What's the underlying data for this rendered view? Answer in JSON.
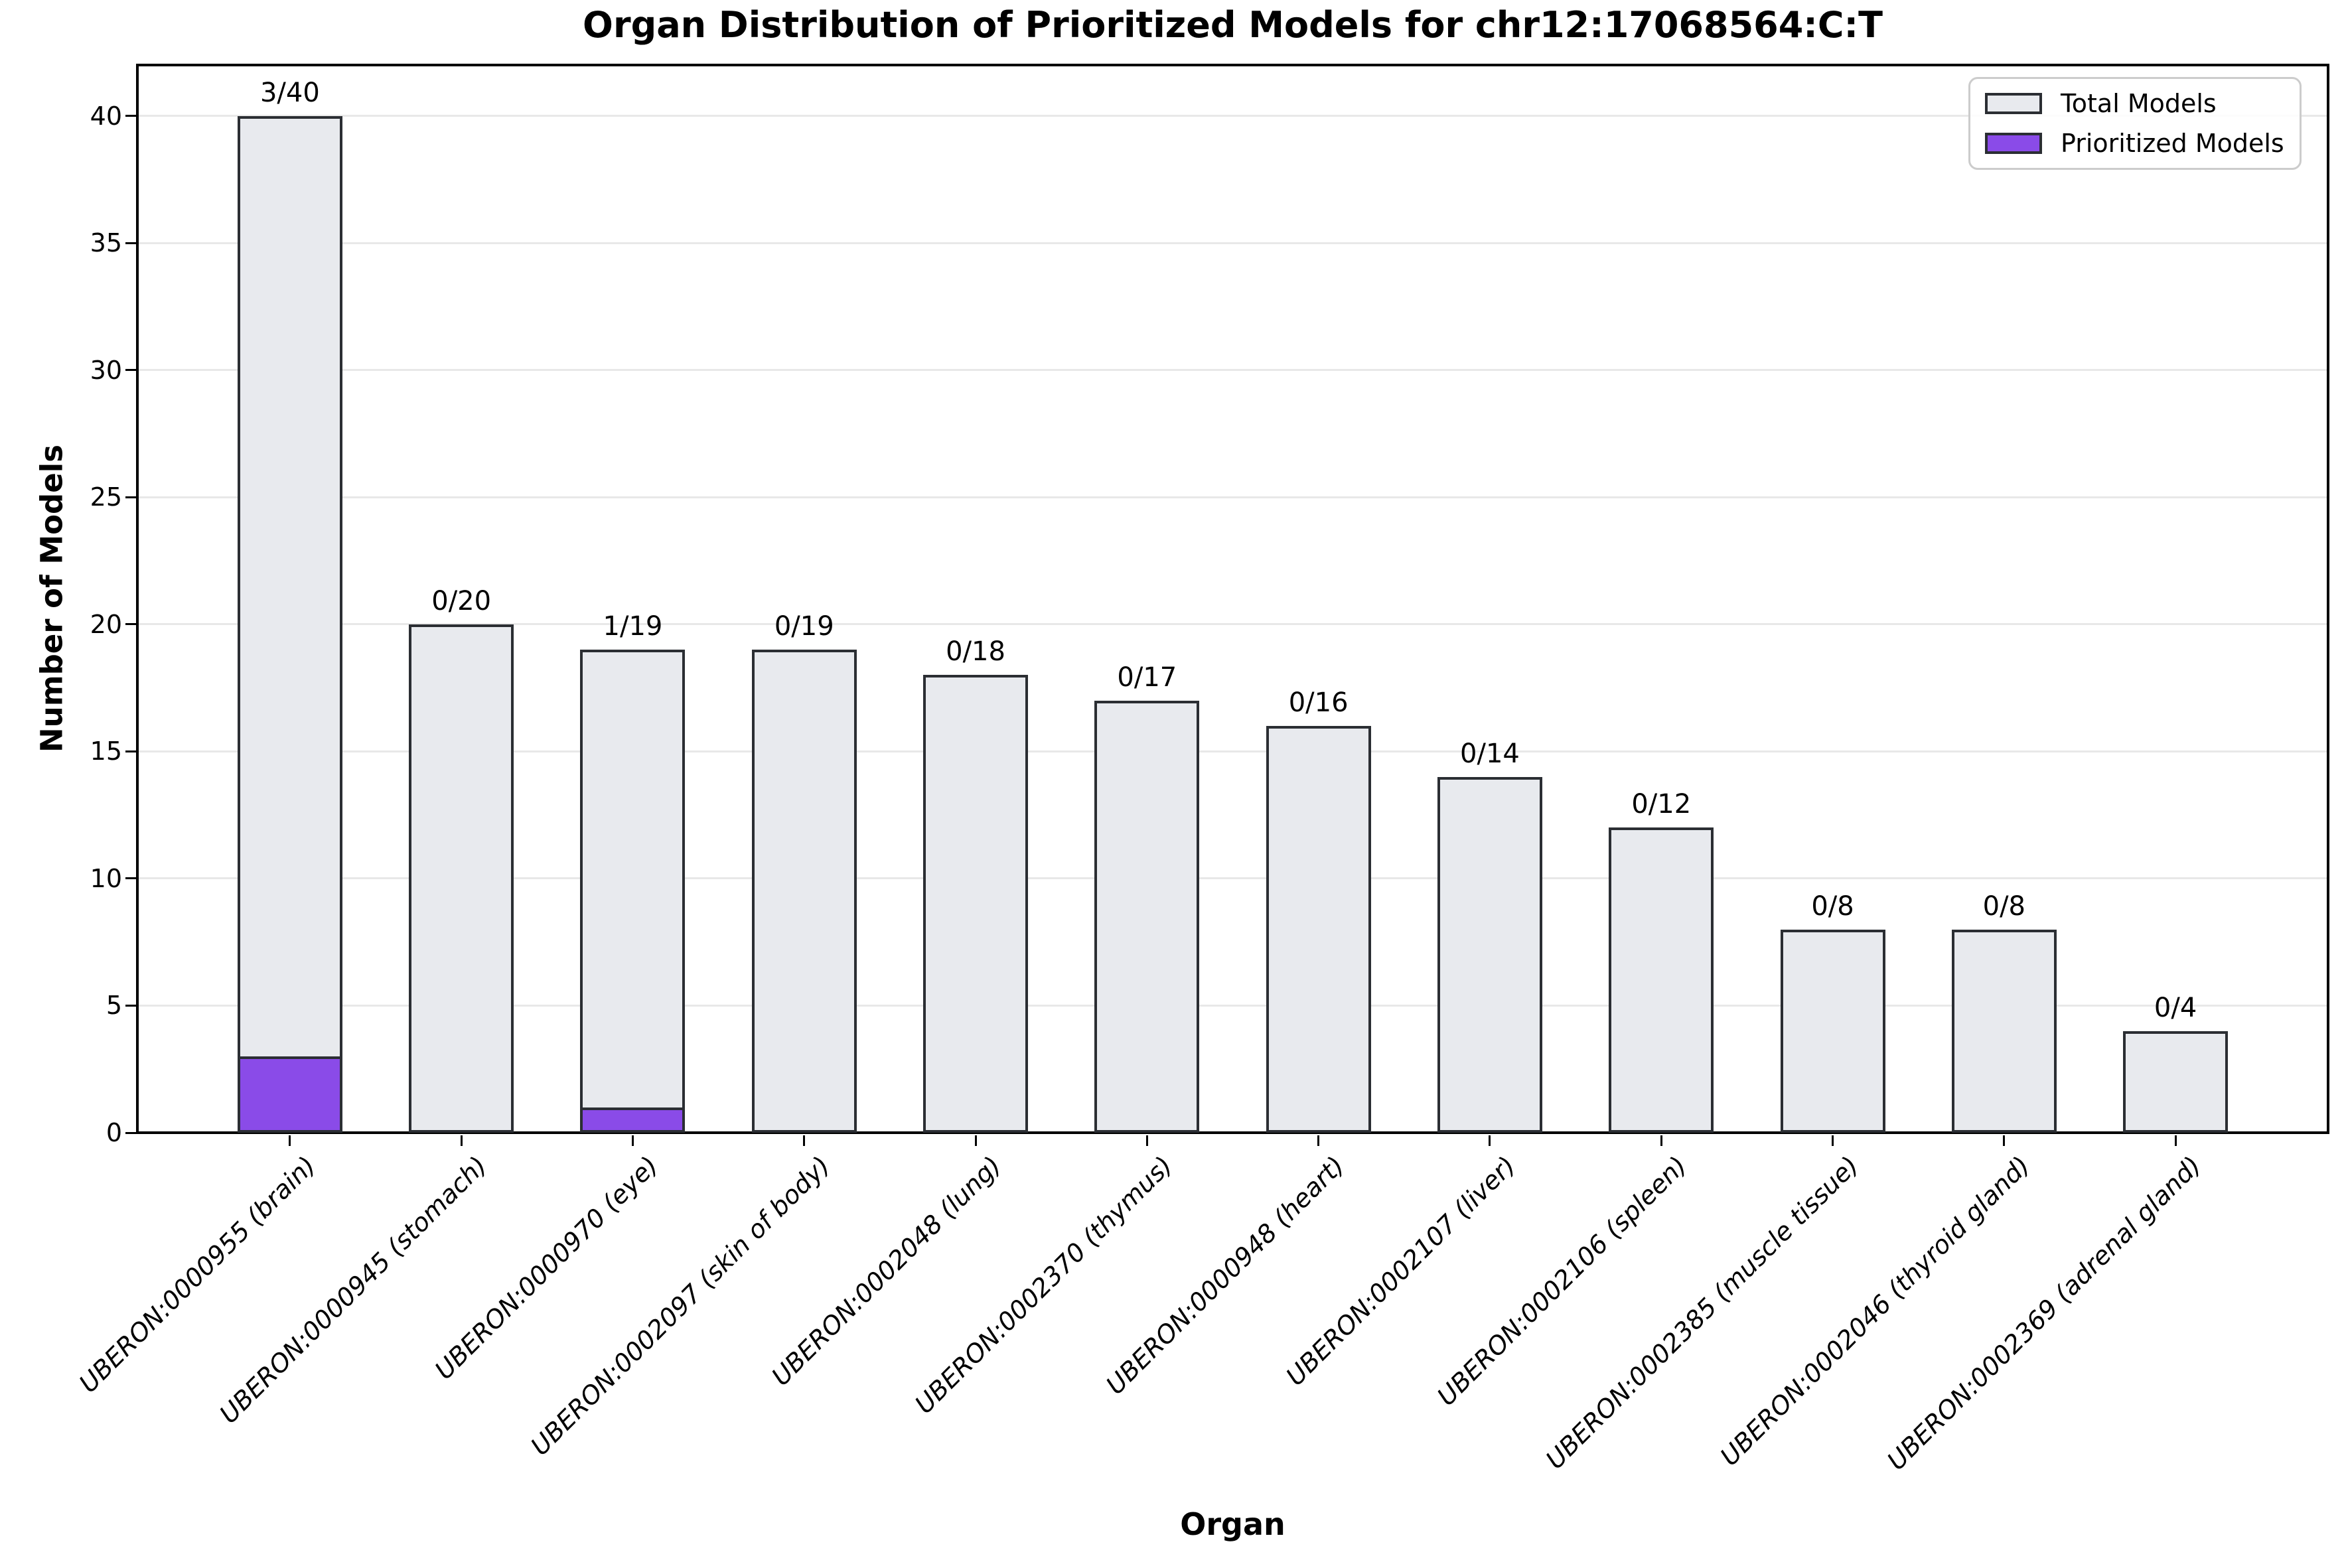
{
  "chart_data": {
    "type": "bar",
    "title": "Organ Distribution of Prioritized Models for chr12:17068564:C:T",
    "xlabel": "Organ",
    "ylabel": "Number of Models",
    "ylim": [
      0,
      42
    ],
    "yticks": [
      0,
      5,
      10,
      15,
      20,
      25,
      30,
      35,
      40
    ],
    "grid": "horizontal",
    "legend_position": "upper right",
    "categories": [
      "UBERON:0000955 (brain)",
      "UBERON:0000945 (stomach)",
      "UBERON:0000970 (eye)",
      "UBERON:0002097 (skin of body)",
      "UBERON:0002048 (lung)",
      "UBERON:0002370 (thymus)",
      "UBERON:0000948 (heart)",
      "UBERON:0002107 (liver)",
      "UBERON:0002106 (spleen)",
      "UBERON:0002385 (muscle tissue)",
      "UBERON:0002046 (thyroid gland)",
      "UBERON:0002369 (adrenal gland)"
    ],
    "series": [
      {
        "name": "Total Models",
        "color": "#e8eaee",
        "values": [
          40,
          20,
          19,
          19,
          18,
          17,
          16,
          14,
          12,
          8,
          8,
          4
        ]
      },
      {
        "name": "Prioritized Models",
        "color": "#8a4be8",
        "values": [
          3,
          0,
          1,
          0,
          0,
          0,
          0,
          0,
          0,
          0,
          0,
          0
        ]
      }
    ],
    "bar_labels": [
      "3/40",
      "0/20",
      "1/19",
      "0/19",
      "0/18",
      "0/17",
      "0/16",
      "0/14",
      "0/12",
      "0/8",
      "0/8",
      "0/4"
    ],
    "colors": {
      "bar_edge": "#2b2e33",
      "gridline": "#e8e8e8",
      "axis": "#000000",
      "legend_border": "#cccccc"
    }
  }
}
